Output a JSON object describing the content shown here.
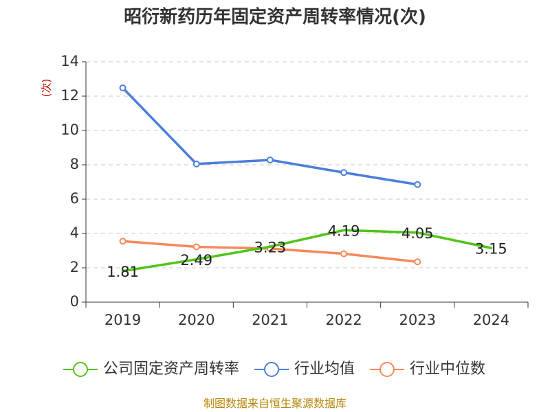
{
  "chart_data": {
    "type": "line",
    "title": "昭衍新药历年固定资产周转率情况(次)",
    "ylabel": "(次)",
    "xlabel": "",
    "categories": [
      "2019",
      "2020",
      "2021",
      "2022",
      "2023",
      "2024"
    ],
    "ylim": [
      0,
      14
    ],
    "yticks": [
      0,
      2,
      4,
      6,
      8,
      10,
      12,
      14
    ],
    "grid": true,
    "legend_position": "bottom",
    "series": [
      {
        "name": "公司固定资产周转率",
        "color": "#52c41a",
        "values": [
          1.81,
          2.49,
          3.23,
          4.19,
          4.05,
          3.15
        ],
        "show_labels": true,
        "markers": false
      },
      {
        "name": "行业均值",
        "color": "#4a7fd9",
        "values": [
          12.48,
          8.05,
          8.28,
          7.55,
          6.85,
          null
        ],
        "show_labels": false,
        "markers": true
      },
      {
        "name": "行业中位数",
        "color": "#f5895a",
        "values": [
          3.55,
          3.22,
          3.12,
          2.82,
          2.35,
          null
        ],
        "show_labels": false,
        "markers": true
      }
    ],
    "source": "制图数据来自恒生聚源数据库"
  }
}
